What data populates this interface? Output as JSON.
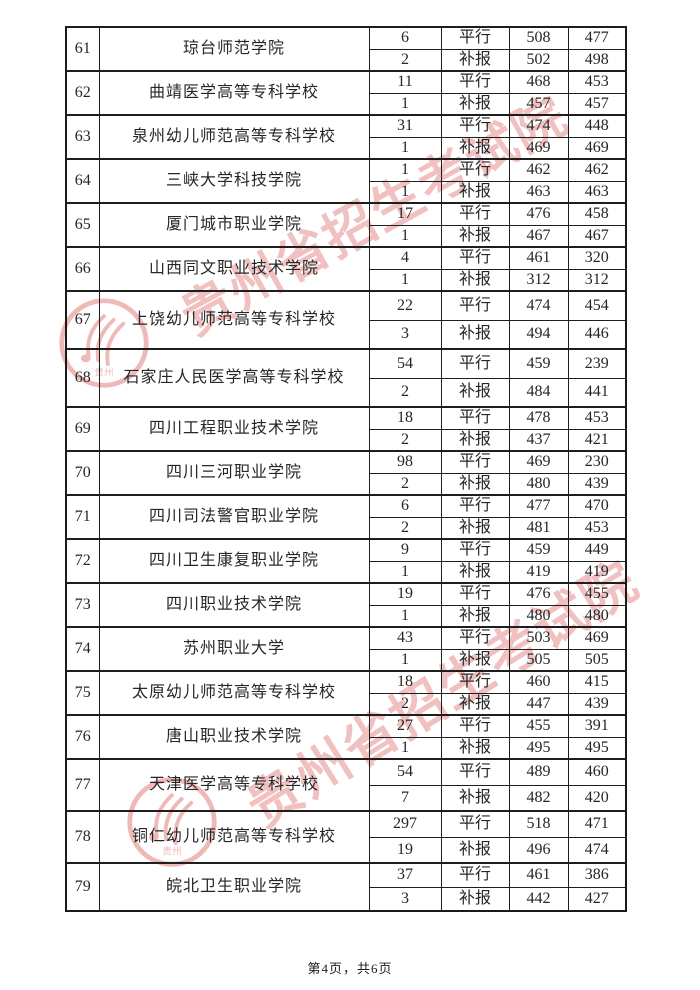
{
  "watermark": {
    "text": "贵州省招生考试院",
    "seal_inner_label": "贵州",
    "color": "#e2807f"
  },
  "table": {
    "rows": [
      {
        "seq": "61",
        "school": "琼台师范学院",
        "entries": [
          {
            "count": "6",
            "type": "平行",
            "score1": "508",
            "score2": "477"
          },
          {
            "count": "2",
            "type": "补报",
            "score1": "502",
            "score2": "498"
          }
        ]
      },
      {
        "seq": "62",
        "school": "曲靖医学高等专科学校",
        "entries": [
          {
            "count": "11",
            "type": "平行",
            "score1": "468",
            "score2": "453"
          },
          {
            "count": "1",
            "type": "补报",
            "score1": "457",
            "score2": "457"
          }
        ]
      },
      {
        "seq": "63",
        "school": "泉州幼儿师范高等专科学校",
        "entries": [
          {
            "count": "31",
            "type": "平行",
            "score1": "474",
            "score2": "448"
          },
          {
            "count": "1",
            "type": "补报",
            "score1": "469",
            "score2": "469"
          }
        ]
      },
      {
        "seq": "64",
        "school": "三峡大学科技学院",
        "entries": [
          {
            "count": "1",
            "type": "平行",
            "score1": "462",
            "score2": "462"
          },
          {
            "count": "1",
            "type": "补报",
            "score1": "463",
            "score2": "463"
          }
        ]
      },
      {
        "seq": "65",
        "school": "厦门城市职业学院",
        "entries": [
          {
            "count": "17",
            "type": "平行",
            "score1": "476",
            "score2": "458"
          },
          {
            "count": "1",
            "type": "补报",
            "score1": "467",
            "score2": "467"
          }
        ]
      },
      {
        "seq": "66",
        "school": "山西同文职业技术学院",
        "entries": [
          {
            "count": "4",
            "type": "平行",
            "score1": "461",
            "score2": "320"
          },
          {
            "count": "1",
            "type": "补报",
            "score1": "312",
            "score2": "312"
          }
        ]
      },
      {
        "seq": "67",
        "school": "上饶幼儿师范高等专科学校",
        "entries": [
          {
            "count": "22",
            "type": "平行",
            "score1": "474",
            "score2": "454"
          },
          {
            "count": "3",
            "type": "补报",
            "score1": "494",
            "score2": "446"
          }
        ]
      },
      {
        "seq": "68",
        "school": "石家庄人民医学高等专科学校",
        "entries": [
          {
            "count": "54",
            "type": "平行",
            "score1": "459",
            "score2": "239"
          },
          {
            "count": "2",
            "type": "补报",
            "score1": "484",
            "score2": "441"
          }
        ]
      },
      {
        "seq": "69",
        "school": "四川工程职业技术学院",
        "entries": [
          {
            "count": "18",
            "type": "平行",
            "score1": "478",
            "score2": "453"
          },
          {
            "count": "2",
            "type": "补报",
            "score1": "437",
            "score2": "421"
          }
        ]
      },
      {
        "seq": "70",
        "school": "四川三河职业学院",
        "entries": [
          {
            "count": "98",
            "type": "平行",
            "score1": "469",
            "score2": "230"
          },
          {
            "count": "2",
            "type": "补报",
            "score1": "480",
            "score2": "439"
          }
        ]
      },
      {
        "seq": "71",
        "school": "四川司法警官职业学院",
        "entries": [
          {
            "count": "6",
            "type": "平行",
            "score1": "477",
            "score2": "470"
          },
          {
            "count": "2",
            "type": "补报",
            "score1": "481",
            "score2": "453"
          }
        ]
      },
      {
        "seq": "72",
        "school": "四川卫生康复职业学院",
        "entries": [
          {
            "count": "9",
            "type": "平行",
            "score1": "459",
            "score2": "449"
          },
          {
            "count": "1",
            "type": "补报",
            "score1": "419",
            "score2": "419"
          }
        ]
      },
      {
        "seq": "73",
        "school": "四川职业技术学院",
        "entries": [
          {
            "count": "19",
            "type": "平行",
            "score1": "476",
            "score2": "455"
          },
          {
            "count": "1",
            "type": "补报",
            "score1": "480",
            "score2": "480"
          }
        ]
      },
      {
        "seq": "74",
        "school": "苏州职业大学",
        "entries": [
          {
            "count": "43",
            "type": "平行",
            "score1": "503",
            "score2": "469"
          },
          {
            "count": "1",
            "type": "补报",
            "score1": "505",
            "score2": "505"
          }
        ]
      },
      {
        "seq": "75",
        "school": "太原幼儿师范高等专科学校",
        "entries": [
          {
            "count": "18",
            "type": "平行",
            "score1": "460",
            "score2": "415"
          },
          {
            "count": "2",
            "type": "补报",
            "score1": "447",
            "score2": "439"
          }
        ]
      },
      {
        "seq": "76",
        "school": "唐山职业技术学院",
        "entries": [
          {
            "count": "27",
            "type": "平行",
            "score1": "455",
            "score2": "391"
          },
          {
            "count": "1",
            "type": "补报",
            "score1": "495",
            "score2": "495"
          }
        ]
      },
      {
        "seq": "77",
        "school": "天津医学高等专科学校",
        "entries": [
          {
            "count": "54",
            "type": "平行",
            "score1": "489",
            "score2": "460"
          },
          {
            "count": "7",
            "type": "补报",
            "score1": "482",
            "score2": "420"
          }
        ]
      },
      {
        "seq": "78",
        "school": "铜仁幼儿师范高等专科学校",
        "entries": [
          {
            "count": "297",
            "type": "平行",
            "score1": "518",
            "score2": "471"
          },
          {
            "count": "19",
            "type": "补报",
            "score1": "496",
            "score2": "474"
          }
        ]
      },
      {
        "seq": "79",
        "school": "皖北卫生职业学院",
        "entries": [
          {
            "count": "37",
            "type": "平行",
            "score1": "461",
            "score2": "386"
          },
          {
            "count": "3",
            "type": "补报",
            "score1": "442",
            "score2": "427"
          }
        ]
      }
    ]
  },
  "footer": {
    "text": "第4页，共6页"
  }
}
